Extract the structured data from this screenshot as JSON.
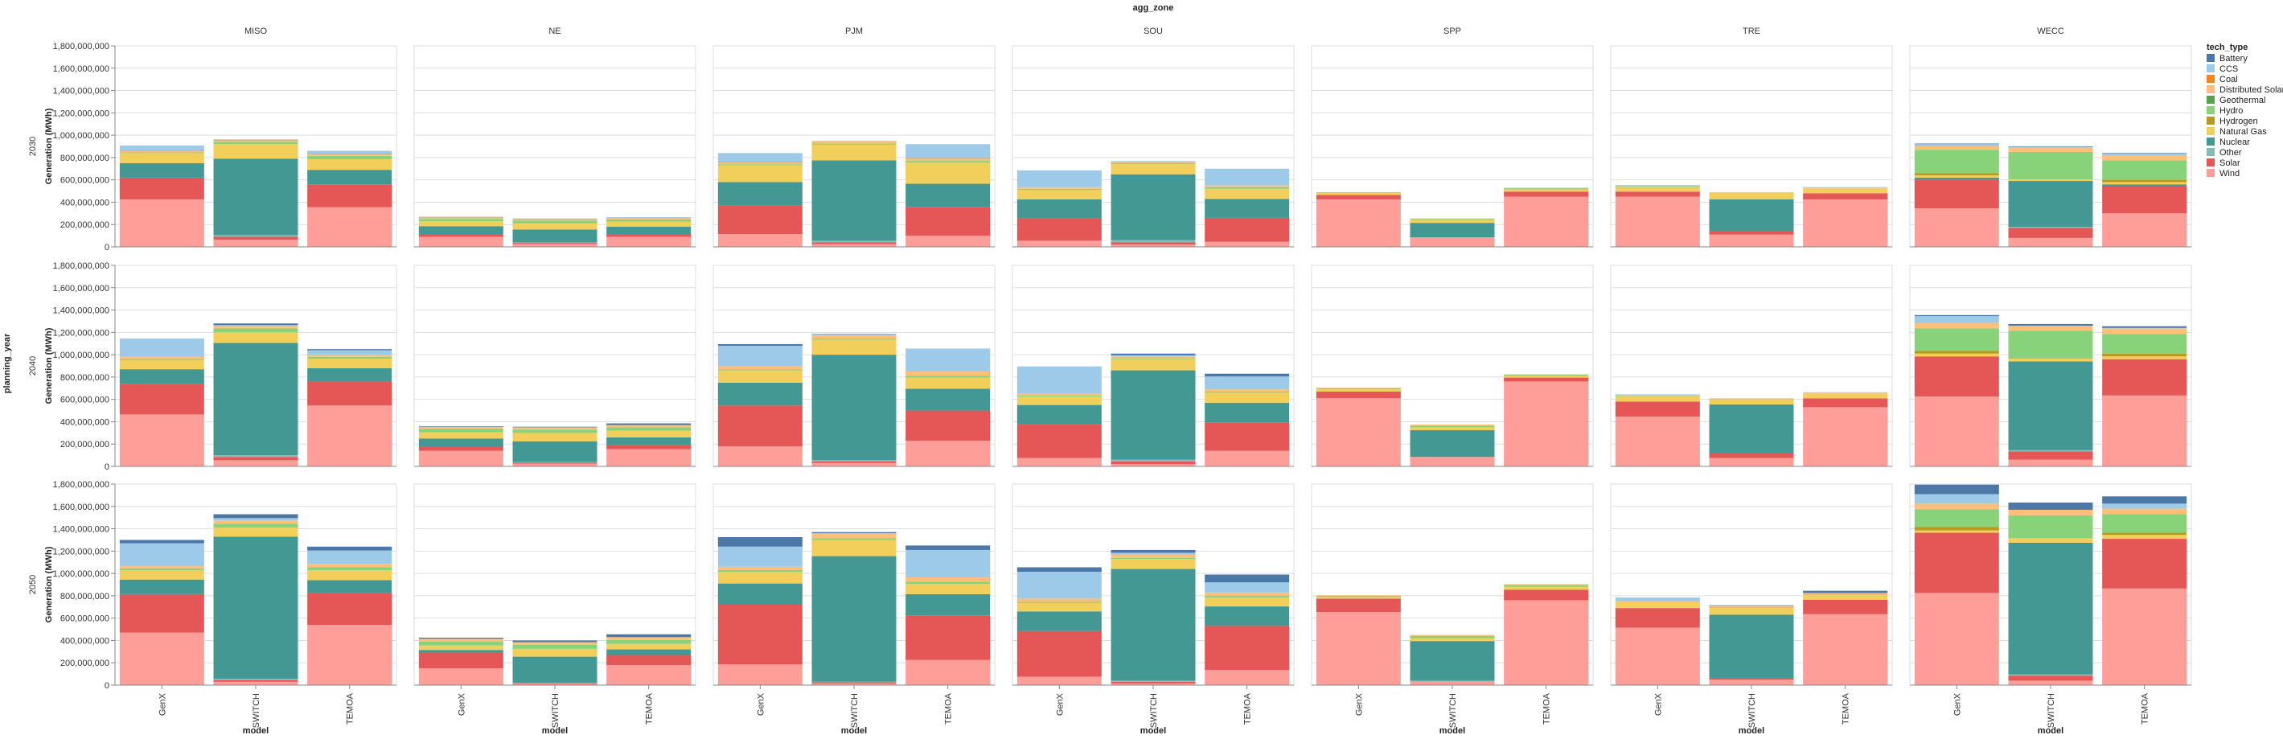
{
  "chart_data": {
    "type": "bar",
    "stacked": true,
    "facet_column_field": "agg_zone",
    "facet_row_field": "planning_year",
    "x_field": "model",
    "y_label": "Generation (MWh)",
    "ylim": [
      0,
      1800000000
    ],
    "y_ticks": [
      0,
      200000000,
      400000000,
      600000000,
      800000000,
      1000000000,
      1200000000,
      1400000000,
      1600000000,
      1800000000
    ],
    "y_tick_labels": [
      "0",
      "200,000,000",
      "400,000,000",
      "600,000,000",
      "800,000,000",
      "1,000,000,000",
      "1,200,000,000",
      "1,400,000,000",
      "1,600,000,000",
      "1,800,000,000"
    ],
    "grid": true,
    "legend_title": "tech_type",
    "legend_position": "right",
    "zones": [
      "MISO",
      "NE",
      "PJM",
      "SOU",
      "SPP",
      "TRE",
      "WECC"
    ],
    "years": [
      "2030",
      "2040",
      "2050"
    ],
    "models": [
      "GenX",
      "SWITCH",
      "TEMOA"
    ],
    "tech_types": [
      "Battery",
      "CCS",
      "Coal",
      "Distributed Solar",
      "Geothermal",
      "Hydro",
      "Hydrogen",
      "Natural Gas",
      "Nuclear",
      "Other",
      "Solar",
      "Wind"
    ],
    "colors": {
      "Battery": "#4c78a8",
      "CCS": "#9ecae9",
      "Coal": "#f58518",
      "Distributed Solar": "#ffbf79",
      "Geothermal": "#54a24b",
      "Hydro": "#88d27a",
      "Hydrogen": "#b79a20",
      "Natural Gas": "#f2cf5b",
      "Nuclear": "#439894",
      "Other": "#83bcb6",
      "Solar": "#e45756",
      "Wind": "#ff9d98"
    },
    "stack_order": [
      "Wind",
      "Solar",
      "Other",
      "Nuclear",
      "Natural Gas",
      "Hydrogen",
      "Hydro",
      "Geothermal",
      "Distributed Solar",
      "Coal",
      "CCS",
      "Battery"
    ],
    "values_million_mwh": {
      "MISO": {
        "2030": {
          "GenX": {
            "Wind": 425,
            "Solar": 195,
            "Nuclear": 130,
            "Natural Gas": 90,
            "Hydro": 8,
            "Distributed Solar": 10,
            "Coal": 5,
            "CCS": 45
          },
          "SWITCH": {
            "Wind": 65,
            "Solar": 25,
            "Other": 15,
            "Nuclear": 685,
            "Natural Gas": 130,
            "Hydro": 20,
            "Distributed Solar": 10,
            "Coal": 5,
            "CCS": 8
          },
          "TEMOA": {
            "Wind": 355,
            "Solar": 205,
            "Nuclear": 130,
            "Natural Gas": 95,
            "Hydro": 30,
            "Distributed Solar": 15,
            "Coal": 5,
            "CCS": 25
          }
        },
        "2040": {
          "GenX": {
            "Wind": 465,
            "Solar": 275,
            "Nuclear": 130,
            "Natural Gas": 80,
            "Hydro": 10,
            "Distributed Solar": 20,
            "CCS": 165
          },
          "SWITCH": {
            "Wind": 55,
            "Solar": 30,
            "Other": 15,
            "Nuclear": 1005,
            "Natural Gas": 95,
            "Hydro": 35,
            "Distributed Solar": 25,
            "CCS": 5,
            "Battery": 15
          },
          "TEMOA": {
            "Wind": 545,
            "Solar": 215,
            "Nuclear": 120,
            "Natural Gas": 85,
            "Hydro": 15,
            "Distributed Solar": 20,
            "CCS": 40,
            "Battery": 10
          }
        },
        "2050": {
          "GenX": {
            "Wind": 470,
            "Solar": 345,
            "Nuclear": 130,
            "Natural Gas": 85,
            "Hydro": 15,
            "Distributed Solar": 20,
            "CCS": 205,
            "Battery": 30
          },
          "SWITCH": {
            "Wind": 30,
            "Solar": 15,
            "Other": 10,
            "Nuclear": 1275,
            "Natural Gas": 80,
            "Hydro": 35,
            "Distributed Solar": 30,
            "CCS": 20,
            "Battery": 35
          },
          "TEMOA": {
            "Wind": 540,
            "Solar": 285,
            "Nuclear": 115,
            "Natural Gas": 90,
            "Hydro": 25,
            "Distributed Solar": 30,
            "CCS": 120,
            "Battery": 35
          }
        }
      },
      "NE": {
        "2030": {
          "GenX": {
            "Wind": 90,
            "Solar": 25,
            "Nuclear": 70,
            "Natural Gas": 45,
            "Hydro": 20,
            "Distributed Solar": 15,
            "Battery": 3
          },
          "SWITCH": {
            "Wind": 25,
            "Solar": 10,
            "Other": 5,
            "Nuclear": 115,
            "Natural Gas": 55,
            "Hydro": 25,
            "Distributed Solar": 15,
            "Battery": 3
          },
          "TEMOA": {
            "Wind": 90,
            "Solar": 25,
            "Nuclear": 65,
            "Natural Gas": 45,
            "Hydro": 20,
            "Distributed Solar": 15,
            "Battery": 3
          }
        },
        "2040": {
          "GenX": {
            "Wind": 140,
            "Solar": 40,
            "Nuclear": 70,
            "Natural Gas": 55,
            "Hydro": 30,
            "Distributed Solar": 20,
            "Battery": 5
          },
          "SWITCH": {
            "Wind": 25,
            "Solar": 10,
            "Other": 5,
            "Nuclear": 185,
            "Natural Gas": 75,
            "Hydro": 30,
            "Distributed Solar": 20,
            "Battery": 5
          },
          "TEMOA": {
            "Wind": 155,
            "Solar": 40,
            "Nuclear": 65,
            "Natural Gas": 60,
            "Hydro": 30,
            "Distributed Solar": 20,
            "Battery": 15
          }
        },
        "2050": {
          "GenX": {
            "Wind": 150,
            "Solar": 145,
            "Nuclear": 20,
            "Natural Gas": 40,
            "Hydro": 35,
            "Distributed Solar": 25,
            "Battery": 10
          },
          "SWITCH": {
            "Wind": 10,
            "Solar": 5,
            "Other": 5,
            "Nuclear": 235,
            "Natural Gas": 70,
            "Hydro": 35,
            "Distributed Solar": 25,
            "Battery": 15
          },
          "TEMOA": {
            "Wind": 180,
            "Solar": 90,
            "Nuclear": 50,
            "Natural Gas": 50,
            "Hydro": 35,
            "Distributed Solar": 25,
            "Battery": 25
          }
        }
      },
      "PJM": {
        "2030": {
          "GenX": {
            "Wind": 115,
            "Solar": 255,
            "Nuclear": 210,
            "Natural Gas": 150,
            "Hydro": 10,
            "Distributed Solar": 15,
            "Coal": 5,
            "CCS": 80
          },
          "SWITCH": {
            "Wind": 25,
            "Solar": 15,
            "Other": 15,
            "Nuclear": 720,
            "Natural Gas": 140,
            "Hydro": 10,
            "Distributed Solar": 20,
            "CCS": 5
          },
          "TEMOA": {
            "Wind": 100,
            "Solar": 255,
            "Nuclear": 210,
            "Natural Gas": 190,
            "Hydro": 15,
            "Distributed Solar": 20,
            "Coal": 5,
            "CCS": 125
          }
        },
        "2040": {
          "GenX": {
            "Wind": 180,
            "Solar": 365,
            "Nuclear": 205,
            "Natural Gas": 110,
            "Hydro": 10,
            "Distributed Solar": 25,
            "CCS": 185,
            "Battery": 15
          },
          "SWITCH": {
            "Wind": 30,
            "Solar": 15,
            "Other": 10,
            "Nuclear": 945,
            "Natural Gas": 135,
            "Hydro": 10,
            "Distributed Solar": 30,
            "CCS": 5,
            "Battery": 5
          },
          "TEMOA": {
            "Wind": 230,
            "Solar": 270,
            "Nuclear": 195,
            "Natural Gas": 100,
            "Hydro": 15,
            "Distributed Solar": 40,
            "CCS": 205
          }
        },
        "2050": {
          "GenX": {
            "Wind": 185,
            "Solar": 535,
            "Nuclear": 190,
            "Natural Gas": 105,
            "Hydro": 15,
            "Distributed Solar": 30,
            "CCS": 180,
            "Battery": 85
          },
          "SWITCH": {
            "Wind": 15,
            "Solar": 10,
            "Other": 5,
            "Nuclear": 1125,
            "Natural Gas": 145,
            "Hydro": 15,
            "Distributed Solar": 40,
            "CCS": 5,
            "Battery": 10
          },
          "TEMOA": {
            "Wind": 225,
            "Solar": 400,
            "Nuclear": 190,
            "Natural Gas": 90,
            "Hydro": 20,
            "Distributed Solar": 40,
            "CCS": 245,
            "Battery": 40
          }
        }
      },
      "SOU": {
        "2030": {
          "GenX": {
            "Wind": 55,
            "Solar": 200,
            "Nuclear": 170,
            "Natural Gas": 85,
            "Hydro": 10,
            "Distributed Solar": 15,
            "CCS": 150
          },
          "SWITCH": {
            "Wind": 20,
            "Solar": 20,
            "Other": 20,
            "Nuclear": 590,
            "Natural Gas": 90,
            "Hydro": 10,
            "Distributed Solar": 15,
            "CCS": 5
          },
          "TEMOA": {
            "Wind": 45,
            "Solar": 215,
            "Nuclear": 170,
            "Natural Gas": 90,
            "Hydro": 15,
            "Distributed Solar": 15,
            "CCS": 150
          }
        },
        "2040": {
          "GenX": {
            "Wind": 75,
            "Solar": 300,
            "Nuclear": 175,
            "Natural Gas": 75,
            "Hydro": 10,
            "Distributed Solar": 20,
            "CCS": 240
          },
          "SWITCH": {
            "Wind": 20,
            "Solar": 25,
            "Other": 15,
            "Nuclear": 800,
            "Natural Gas": 100,
            "Hydro": 10,
            "Distributed Solar": 15,
            "CCS": 10,
            "Battery": 15
          },
          "TEMOA": {
            "Wind": 140,
            "Solar": 255,
            "Nuclear": 175,
            "Natural Gas": 90,
            "Hydro": 10,
            "Distributed Solar": 20,
            "CCS": 115,
            "Battery": 25
          }
        },
        "2050": {
          "GenX": {
            "Wind": 75,
            "Solar": 410,
            "Nuclear": 175,
            "Natural Gas": 75,
            "Hydro": 10,
            "Distributed Solar": 30,
            "CCS": 240,
            "Battery": 40
          },
          "SWITCH": {
            "Wind": 15,
            "Solar": 15,
            "Other": 10,
            "Nuclear": 1000,
            "Natural Gas": 90,
            "Hydro": 10,
            "Distributed Solar": 30,
            "CCS": 15,
            "Battery": 25
          },
          "TEMOA": {
            "Wind": 135,
            "Solar": 395,
            "Nuclear": 175,
            "Natural Gas": 80,
            "Hydro": 15,
            "Distributed Solar": 30,
            "CCS": 90,
            "Battery": 70
          }
        }
      },
      "SPP": {
        "2030": {
          "GenX": {
            "Wind": 425,
            "Solar": 40,
            "Natural Gas": 20,
            "Hydro": 5
          },
          "SWITCH": {
            "Wind": 85,
            "Nuclear": 130,
            "Natural Gas": 25,
            "Hydro": 10,
            "Distributed Solar": 5
          },
          "TEMOA": {
            "Wind": 450,
            "Solar": 45,
            "Natural Gas": 20,
            "Hydro": 10,
            "Distributed Solar": 5
          }
        },
        "2040": {
          "GenX": {
            "Wind": 610,
            "Solar": 60,
            "Natural Gas": 20,
            "Hydro": 10,
            "Distributed Solar": 5
          },
          "SWITCH": {
            "Wind": 85,
            "Nuclear": 240,
            "Natural Gas": 25,
            "Hydro": 15,
            "Distributed Solar": 10
          },
          "TEMOA": {
            "Wind": 760,
            "Solar": 35,
            "Natural Gas": 15,
            "Hydro": 10,
            "Distributed Solar": 5
          }
        },
        "2050": {
          "GenX": {
            "Wind": 655,
            "Solar": 120,
            "Natural Gas": 15,
            "Hydro": 10,
            "Distributed Solar": 5
          },
          "SWITCH": {
            "Wind": 30,
            "Other": 10,
            "Nuclear": 355,
            "Natural Gas": 25,
            "Hydro": 20,
            "Distributed Solar": 10
          },
          "TEMOA": {
            "Wind": 760,
            "Solar": 95,
            "Natural Gas": 25,
            "Hydro": 15,
            "Distributed Solar": 10
          }
        }
      },
      "TRE": {
        "2030": {
          "GenX": {
            "Wind": 450,
            "Solar": 45,
            "Natural Gas": 40,
            "Hydro": 5,
            "Distributed Solar": 10,
            "CCS": 5
          },
          "SWITCH": {
            "Wind": 110,
            "Solar": 30,
            "Nuclear": 285,
            "Natural Gas": 60,
            "Distributed Solar": 5
          },
          "TEMOA": {
            "Wind": 425,
            "Solar": 55,
            "Natural Gas": 40,
            "Distributed Solar": 10,
            "CCS": 5
          }
        },
        "2040": {
          "GenX": {
            "Wind": 445,
            "Solar": 135,
            "Natural Gas": 45,
            "Hydro": 5,
            "Distributed Solar": 10,
            "CCS": 5
          },
          "SWITCH": {
            "Wind": 75,
            "Solar": 40,
            "Nuclear": 440,
            "Natural Gas": 40,
            "Hydro": 5,
            "Distributed Solar": 10
          },
          "TEMOA": {
            "Wind": 530,
            "Solar": 80,
            "Natural Gas": 40,
            "Distributed Solar": 10,
            "CCS": 5
          }
        },
        "2050": {
          "GenX": {
            "Wind": 515,
            "Solar": 175,
            "Natural Gas": 45,
            "Distributed Solar": 15,
            "CCS": 35
          },
          "SWITCH": {
            "Wind": 50,
            "Solar": 15,
            "Nuclear": 565,
            "Natural Gas": 65,
            "Hydro": 5,
            "Distributed Solar": 10,
            "Battery": 5
          },
          "TEMOA": {
            "Wind": 635,
            "Solar": 130,
            "Natural Gas": 40,
            "Hydro": 5,
            "Distributed Solar": 15,
            "Battery": 20
          }
        }
      },
      "WECC": {
        "2030": {
          "GenX": {
            "Wind": 345,
            "Solar": 255,
            "Nuclear": 20,
            "Natural Gas": 20,
            "Hydrogen": 20,
            "Hydro": 210,
            "Distributed Solar": 30,
            "CCS": 20,
            "Battery": 5
          },
          "SWITCH": {
            "Wind": 80,
            "Solar": 90,
            "Other": 10,
            "Nuclear": 410,
            "Natural Gas": 15,
            "Hydro": 245,
            "Distributed Solar": 40,
            "CCS": 5,
            "Battery": 5
          },
          "TEMOA": {
            "Wind": 300,
            "Solar": 240,
            "Nuclear": 20,
            "Natural Gas": 20,
            "Hydrogen": 20,
            "Hydro": 175,
            "Distributed Solar": 40,
            "CCS": 20,
            "Battery": 5
          }
        },
        "2040": {
          "GenX": {
            "Wind": 625,
            "Solar": 360,
            "Natural Gas": 25,
            "Hydrogen": 25,
            "Hydro": 200,
            "Distributed Solar": 50,
            "CCS": 60,
            "Battery": 10
          },
          "SWITCH": {
            "Wind": 60,
            "Solar": 75,
            "Other": 10,
            "Nuclear": 795,
            "Natural Gas": 25,
            "Hydro": 250,
            "Distributed Solar": 45,
            "Battery": 15
          },
          "TEMOA": {
            "Wind": 635,
            "Solar": 325,
            "Natural Gas": 25,
            "Hydrogen": 25,
            "Hydro": 175,
            "Distributed Solar": 50,
            "CCS": 5,
            "Battery": 15
          }
        },
        "2050": {
          "GenX": {
            "Wind": 825,
            "Solar": 540,
            "Natural Gas": 20,
            "Hydrogen": 30,
            "Hydro": 160,
            "Distributed Solar": 50,
            "CCS": 85,
            "Battery": 85
          },
          "SWITCH": {
            "Wind": 40,
            "Solar": 45,
            "Other": 10,
            "Nuclear": 1180,
            "Natural Gas": 40,
            "Hydro": 205,
            "Distributed Solar": 50,
            "Battery": 65
          },
          "TEMOA": {
            "Wind": 865,
            "Solar": 445,
            "Natural Gas": 35,
            "Hydrogen": 20,
            "Hydro": 165,
            "Distributed Solar": 50,
            "CCS": 45,
            "Battery": 65
          }
        }
      }
    }
  }
}
